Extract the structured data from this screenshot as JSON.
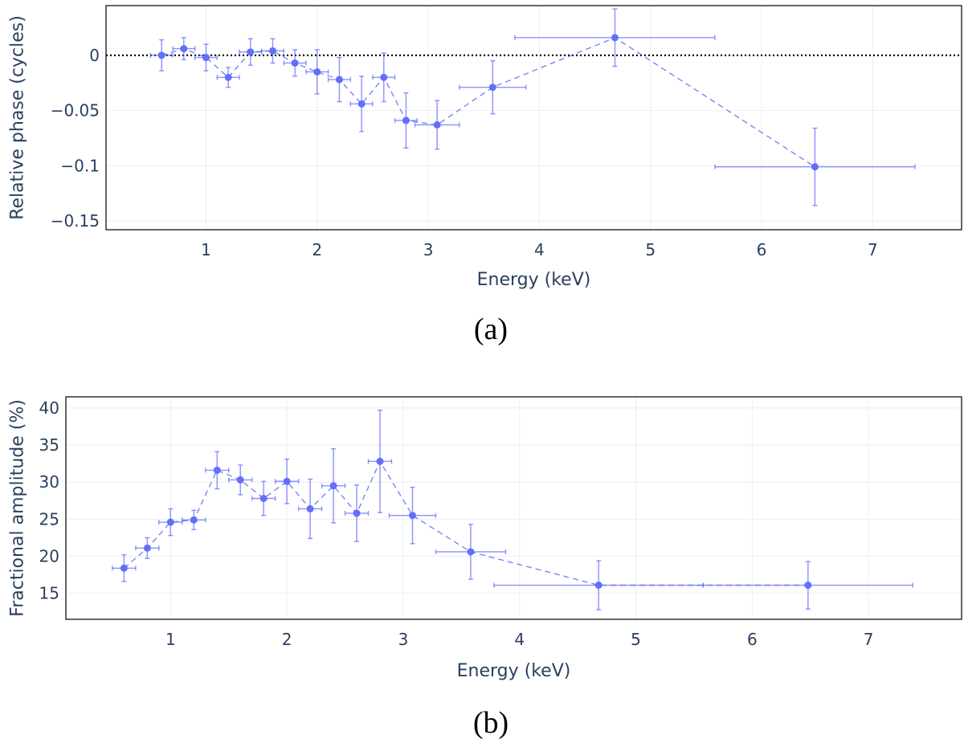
{
  "chart_data": [
    {
      "type": "scatter",
      "panel": "(a)",
      "xlabel": "Energy (keV)",
      "ylabel": "Relative phase (cycles)",
      "xlim": [
        0.1,
        7.8
      ],
      "ylim": [
        -0.158,
        0.045
      ],
      "xticks": [
        1,
        2,
        3,
        4,
        5,
        6,
        7
      ],
      "xtick_labels": [
        "1",
        "2",
        "3",
        "4",
        "5",
        "6",
        "7"
      ],
      "yticks": [
        0,
        -0.05,
        -0.1,
        -0.15
      ],
      "ytick_labels": [
        "0",
        "−0.05",
        "−0.1",
        "−0.15"
      ],
      "reference_line": {
        "y": 0,
        "style": "dotted",
        "color": "#000000"
      },
      "marker_color": "#636efa",
      "points": [
        {
          "x": 0.6,
          "y": 0.0,
          "xerr": 0.1,
          "yerr": 0.014
        },
        {
          "x": 0.8,
          "y": 0.006,
          "xerr": 0.1,
          "yerr": 0.01
        },
        {
          "x": 1.0,
          "y": -0.002,
          "xerr": 0.1,
          "yerr": 0.012
        },
        {
          "x": 1.2,
          "y": -0.02,
          "xerr": 0.1,
          "yerr": 0.009
        },
        {
          "x": 1.4,
          "y": 0.003,
          "xerr": 0.1,
          "yerr": 0.012
        },
        {
          "x": 1.6,
          "y": 0.004,
          "xerr": 0.1,
          "yerr": 0.011
        },
        {
          "x": 1.8,
          "y": -0.007,
          "xerr": 0.1,
          "yerr": 0.012
        },
        {
          "x": 2.0,
          "y": -0.015,
          "xerr": 0.1,
          "yerr": 0.02
        },
        {
          "x": 2.2,
          "y": -0.022,
          "xerr": 0.1,
          "yerr": 0.02
        },
        {
          "x": 2.4,
          "y": -0.044,
          "xerr": 0.1,
          "yerr": 0.025
        },
        {
          "x": 2.6,
          "y": -0.02,
          "xerr": 0.1,
          "yerr": 0.022
        },
        {
          "x": 2.8,
          "y": -0.059,
          "xerr": 0.1,
          "yerr": 0.025
        },
        {
          "x": 3.08,
          "y": -0.063,
          "xerr": 0.2,
          "yerr": 0.022
        },
        {
          "x": 3.58,
          "y": -0.029,
          "xerr": 0.3,
          "yerr": 0.024
        },
        {
          "x": 4.68,
          "y": 0.016,
          "xerr": 0.9,
          "yerr": 0.026
        },
        {
          "x": 6.48,
          "y": -0.101,
          "xerr": 0.9,
          "yerr": 0.035
        }
      ]
    },
    {
      "type": "scatter",
      "panel": "(b)",
      "xlabel": "Energy (keV)",
      "ylabel": "Fractional amplitude (%)",
      "xlim": [
        0.1,
        7.8
      ],
      "ylim": [
        11.5,
        41.5
      ],
      "xticks": [
        1,
        2,
        3,
        4,
        5,
        6,
        7
      ],
      "xtick_labels": [
        "1",
        "2",
        "3",
        "4",
        "5",
        "6",
        "7"
      ],
      "yticks": [
        15,
        20,
        25,
        30,
        35,
        40
      ],
      "ytick_labels": [
        "15",
        "20",
        "25",
        "30",
        "35",
        "40"
      ],
      "marker_color": "#636efa",
      "points": [
        {
          "x": 0.6,
          "y": 18.4,
          "xerr": 0.1,
          "yerr": 1.8
        },
        {
          "x": 0.8,
          "y": 21.1,
          "xerr": 0.1,
          "yerr": 1.4
        },
        {
          "x": 1.0,
          "y": 24.6,
          "xerr": 0.1,
          "yerr": 1.8
        },
        {
          "x": 1.2,
          "y": 24.9,
          "xerr": 0.1,
          "yerr": 1.3
        },
        {
          "x": 1.4,
          "y": 31.6,
          "xerr": 0.1,
          "yerr": 2.5
        },
        {
          "x": 1.6,
          "y": 30.3,
          "xerr": 0.1,
          "yerr": 2.0
        },
        {
          "x": 1.8,
          "y": 27.8,
          "xerr": 0.1,
          "yerr": 2.3
        },
        {
          "x": 2.0,
          "y": 30.1,
          "xerr": 0.1,
          "yerr": 3.0
        },
        {
          "x": 2.2,
          "y": 26.4,
          "xerr": 0.1,
          "yerr": 4.0
        },
        {
          "x": 2.4,
          "y": 29.5,
          "xerr": 0.1,
          "yerr": 5.0
        },
        {
          "x": 2.6,
          "y": 25.8,
          "xerr": 0.1,
          "yerr": 3.8
        },
        {
          "x": 2.8,
          "y": 32.8,
          "xerr": 0.1,
          "yerr": 6.9
        },
        {
          "x": 3.08,
          "y": 25.5,
          "xerr": 0.2,
          "yerr": 3.8
        },
        {
          "x": 3.58,
          "y": 20.6,
          "xerr": 0.3,
          "yerr": 3.7
        },
        {
          "x": 4.68,
          "y": 16.1,
          "xerr": 0.9,
          "yerr": 3.3
        },
        {
          "x": 6.48,
          "y": 16.1,
          "xerr": 0.9,
          "yerr": 3.2
        }
      ]
    }
  ]
}
